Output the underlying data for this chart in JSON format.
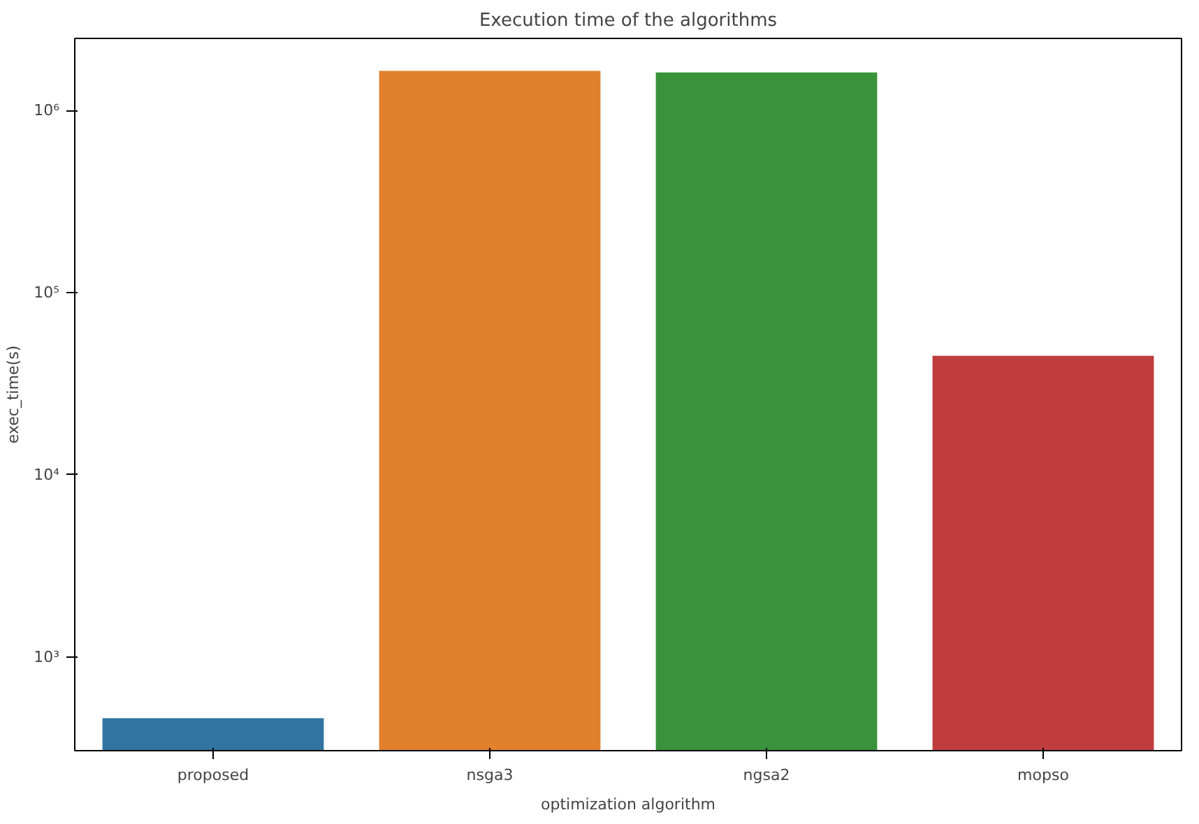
{
  "chart_data": {
    "type": "bar",
    "title": "Execution time of the algorithms",
    "xlabel": "optimization algorithm",
    "ylabel": "exec_time(s)",
    "categories": [
      "proposed",
      "nsga3",
      "ngsa2",
      "mopso"
    ],
    "values": [
      460,
      1650000,
      1620000,
      45000
    ],
    "colors": [
      "#3274a1",
      "#e1812c",
      "#3a923a",
      "#c03d3e"
    ],
    "log": true,
    "ylim": [
      305,
      2490000
    ],
    "yticks": [
      {
        "value": 1000,
        "label": "10³"
      },
      {
        "value": 10000,
        "label": "10⁴"
      },
      {
        "value": 100000,
        "label": "10⁵"
      },
      {
        "value": 1000000,
        "label": "10⁶"
      }
    ],
    "grid": false
  }
}
